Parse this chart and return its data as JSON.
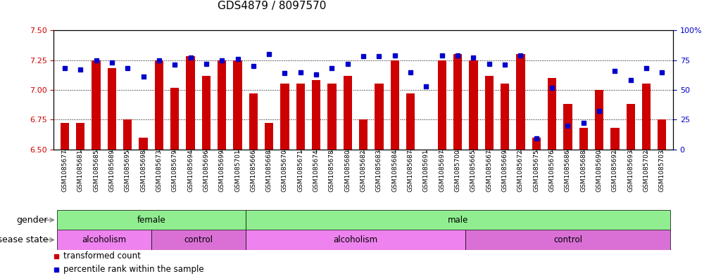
{
  "title": "GDS4879 / 8097570",
  "samples": [
    "GSM1085677",
    "GSM1085681",
    "GSM1085685",
    "GSM1085689",
    "GSM1085695",
    "GSM1085698",
    "GSM1085673",
    "GSM1085679",
    "GSM1085694",
    "GSM1085696",
    "GSM1085699",
    "GSM1085701",
    "GSM1085666",
    "GSM1085668",
    "GSM1085670",
    "GSM1085671",
    "GSM1085674",
    "GSM1085678",
    "GSM1085680",
    "GSM1085682",
    "GSM1085683",
    "GSM1085684",
    "GSM1085687",
    "GSM1085691",
    "GSM1085697",
    "GSM1085700",
    "GSM1085665",
    "GSM1085667",
    "GSM1085669",
    "GSM1085672",
    "GSM1085675",
    "GSM1085676",
    "GSM1085686",
    "GSM1085688",
    "GSM1085690",
    "GSM1085692",
    "GSM1085693",
    "GSM1085702",
    "GSM1085703"
  ],
  "bar_values": [
    6.72,
    6.72,
    7.25,
    7.18,
    6.75,
    6.6,
    7.25,
    7.02,
    7.28,
    7.12,
    7.25,
    7.25,
    6.97,
    6.72,
    7.05,
    7.05,
    7.08,
    7.05,
    7.12,
    6.75,
    7.05,
    7.25,
    6.97,
    6.5,
    7.25,
    7.3,
    7.25,
    7.12,
    7.05,
    7.3,
    6.6,
    7.1,
    6.88,
    6.68,
    7.0,
    6.68,
    6.88,
    7.05,
    6.75
  ],
  "percentile_values": [
    68,
    67,
    75,
    73,
    68,
    61,
    75,
    71,
    77,
    72,
    75,
    76,
    70,
    80,
    64,
    65,
    63,
    68,
    72,
    78,
    78,
    79,
    65,
    53,
    79,
    79,
    77,
    72,
    71,
    79,
    9,
    52,
    20,
    22,
    32,
    66,
    58,
    68,
    65
  ],
  "ylim_left": [
    6.5,
    7.5
  ],
  "ylim_right": [
    0,
    100
  ],
  "yticks_left": [
    6.5,
    6.75,
    7.0,
    7.25,
    7.5
  ],
  "yticks_right": [
    0,
    25,
    50,
    75,
    100
  ],
  "ytick_labels_right": [
    "0",
    "25",
    "50",
    "75",
    "100%"
  ],
  "bar_color": "#cc0000",
  "dot_color": "#0000cc",
  "bar_bottom": 6.5,
  "gender_groups": [
    {
      "label": "female",
      "start": 0,
      "end": 12,
      "color": "#90ee90"
    },
    {
      "label": "male",
      "start": 12,
      "end": 39,
      "color": "#90ee90"
    }
  ],
  "disease_groups": [
    {
      "label": "alcoholism",
      "start": 0,
      "end": 6,
      "color": "#ee82ee"
    },
    {
      "label": "control",
      "start": 6,
      "end": 12,
      "color": "#da70d6"
    },
    {
      "label": "alcoholism",
      "start": 12,
      "end": 26,
      "color": "#ee82ee"
    },
    {
      "label": "control",
      "start": 26,
      "end": 39,
      "color": "#da70d6"
    }
  ],
  "gender_label": "gender",
  "disease_label": "disease state",
  "legend_items": [
    {
      "label": "transformed count",
      "color": "#cc0000"
    },
    {
      "label": "percentile rank within the sample",
      "color": "#0000cc"
    }
  ],
  "background_color": "#ffffff",
  "plot_bg_color": "#ffffff",
  "tick_label_color_left": "#cc0000",
  "tick_label_color_right": "#0000cc",
  "title_fontsize": 11,
  "tick_fontsize": 8,
  "label_fontsize": 9
}
